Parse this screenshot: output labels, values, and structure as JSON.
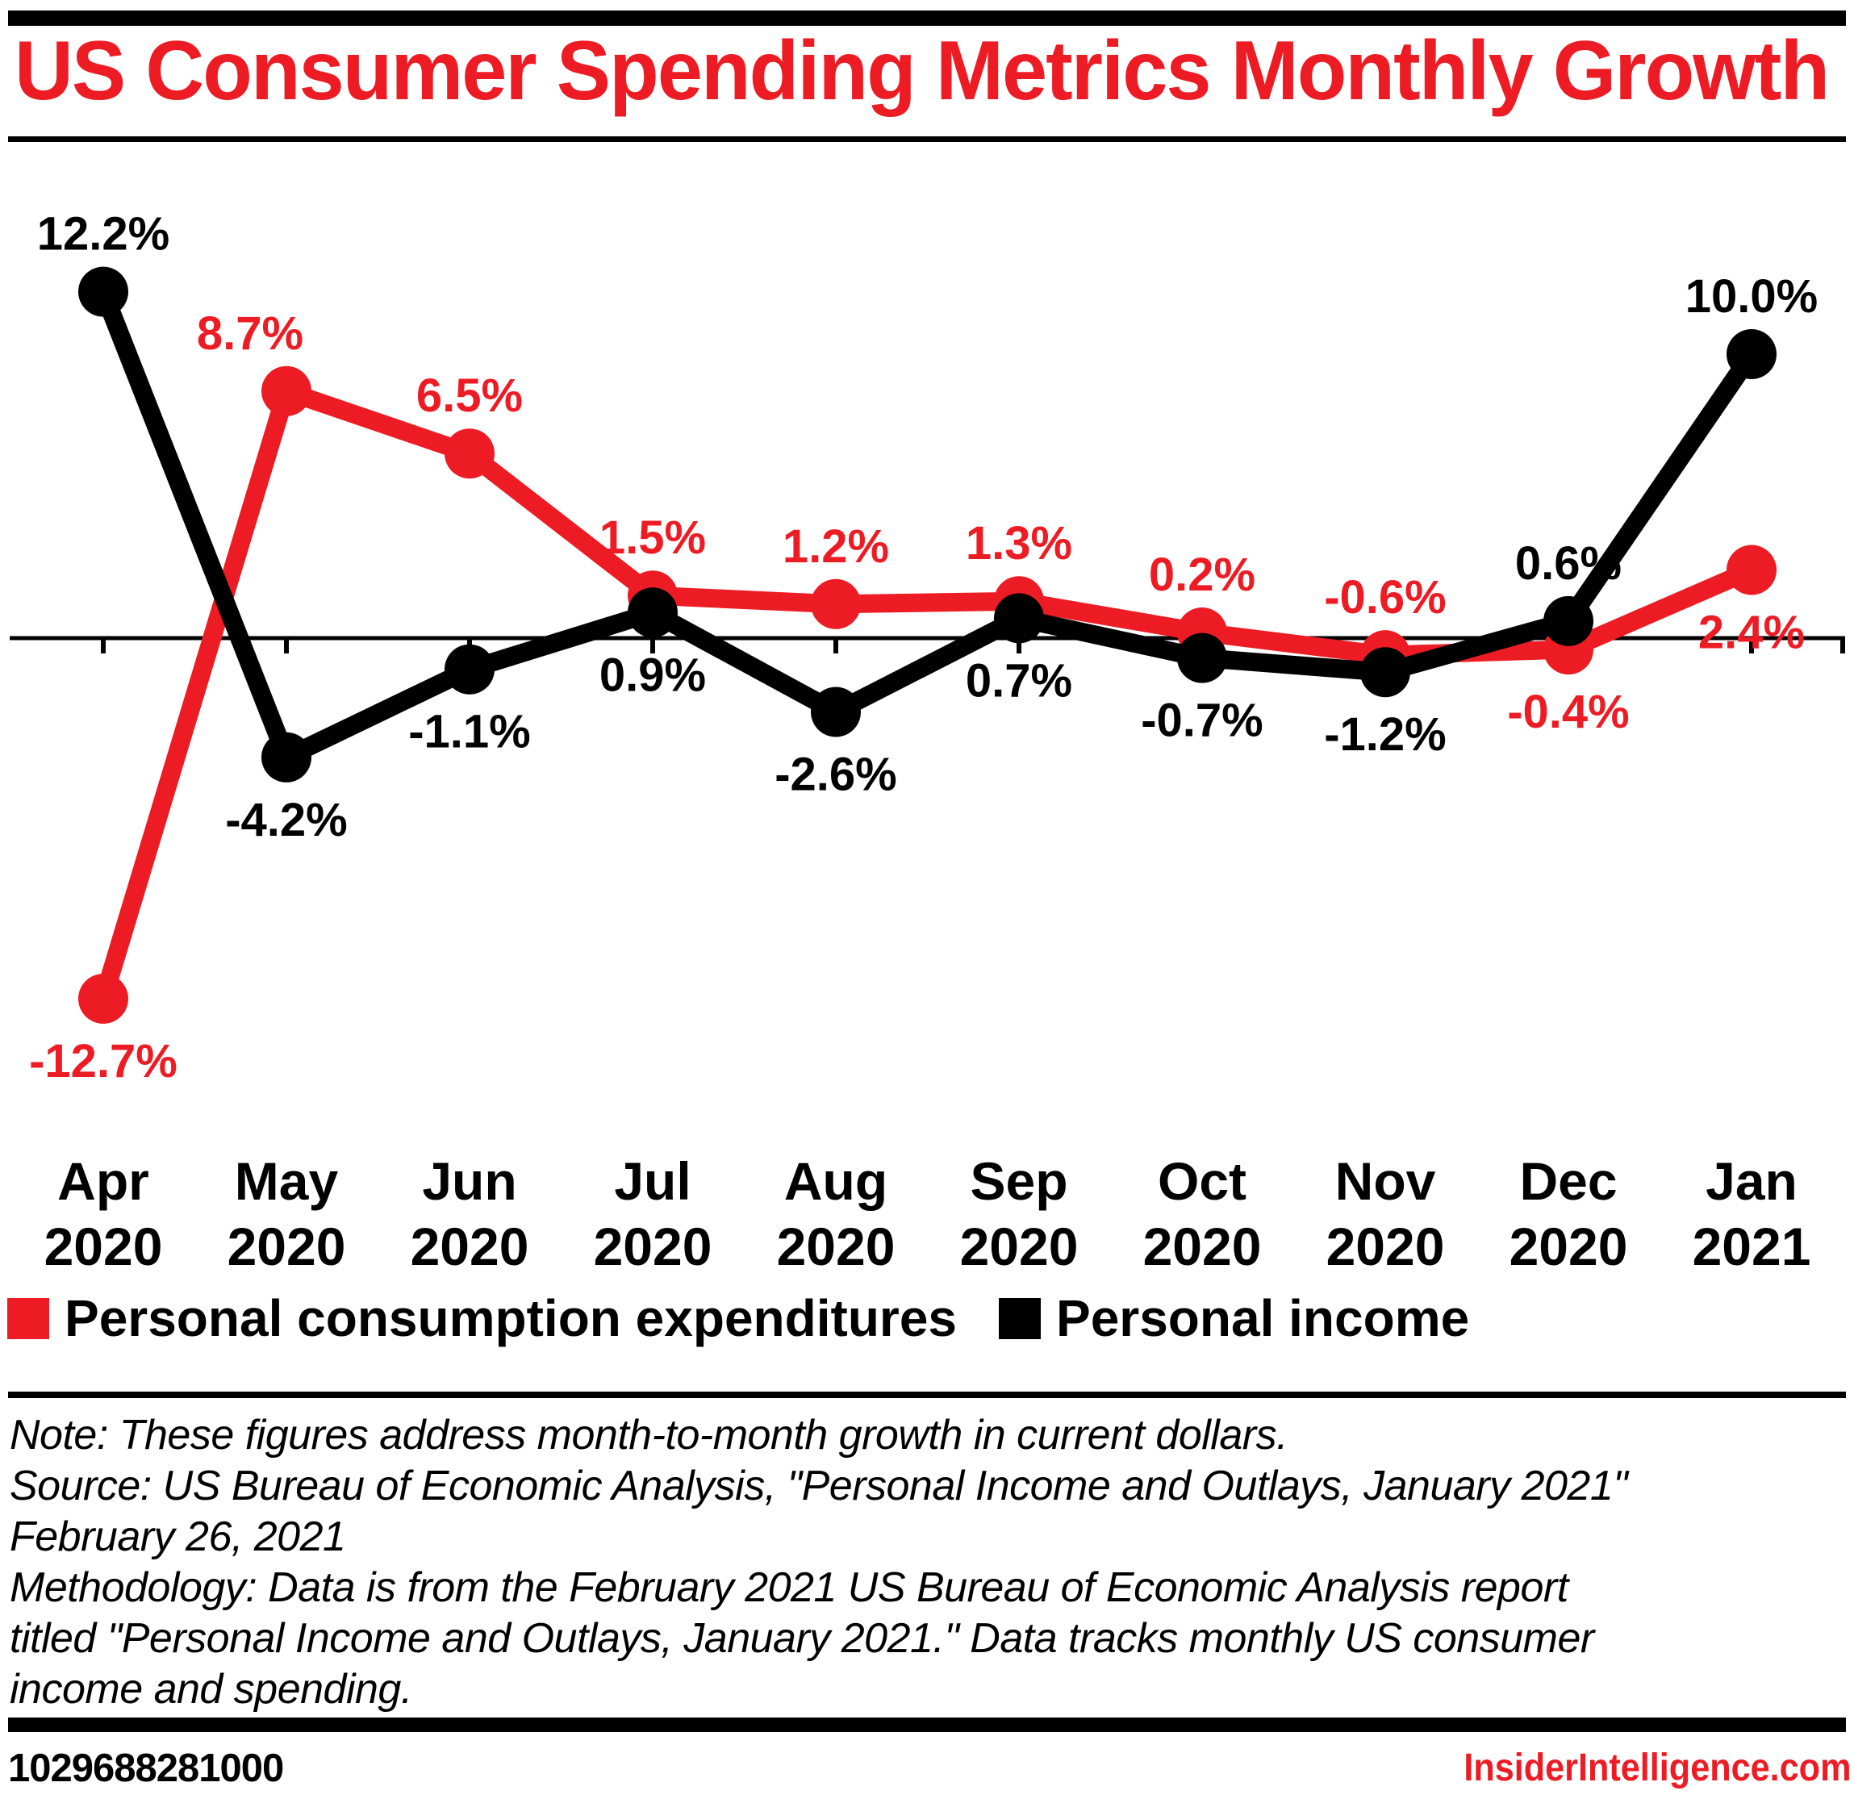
{
  "colors": {
    "accent": "#ED1C24",
    "ink": "#000000"
  },
  "header": {
    "title": "US Consumer Spending Metrics Monthly Growth"
  },
  "chart_data": {
    "type": "line",
    "title": "US Consumer Spending Metrics Monthly Growth",
    "x_categories": [
      {
        "month": "Apr",
        "year": "2020"
      },
      {
        "month": "May",
        "year": "2020"
      },
      {
        "month": "Jun",
        "year": "2020"
      },
      {
        "month": "Jul",
        "year": "2020"
      },
      {
        "month": "Aug",
        "year": "2020"
      },
      {
        "month": "Sep",
        "year": "2020"
      },
      {
        "month": "Oct",
        "year": "2020"
      },
      {
        "month": "Nov",
        "year": "2020"
      },
      {
        "month": "Dec",
        "year": "2020"
      },
      {
        "month": "Jan",
        "year": "2021"
      }
    ],
    "y_unit": "%",
    "baseline_value": 0,
    "grid": "zero-axis-only",
    "legend_position": "bottom",
    "series": [
      {
        "name": "Personal consumption expenditures",
        "color": "#ED1C24",
        "values": [
          -12.7,
          8.7,
          6.5,
          1.5,
          1.2,
          1.3,
          0.2,
          -0.6,
          -0.4,
          2.4
        ],
        "labels": [
          "-12.7%",
          "8.7%",
          "6.5%",
          "1.5%",
          "1.2%",
          "1.3%",
          "0.2%",
          "-0.6%",
          "-0.4%",
          "2.4%"
        ],
        "label_side": [
          "below",
          "above",
          "above",
          "above",
          "above",
          "above",
          "above",
          "above",
          "below",
          "below"
        ],
        "label_dx": [
          0,
          -45,
          0,
          0,
          0,
          0,
          0,
          0,
          0,
          0
        ]
      },
      {
        "name": "Personal income",
        "color": "#000000",
        "values": [
          12.2,
          -4.2,
          -1.1,
          0.9,
          -2.6,
          0.7,
          -0.7,
          -1.2,
          0.6,
          10.0
        ],
        "labels": [
          "12.2%",
          "-4.2%",
          "-1.1%",
          "0.9%",
          "-2.6%",
          "0.7%",
          "-0.7%",
          "-1.2%",
          "0.6%",
          "10.0%"
        ],
        "label_side": [
          "above",
          "below",
          "below",
          "below",
          "below",
          "below",
          "below",
          "below",
          "above",
          "above"
        ],
        "label_dx": [
          0,
          0,
          0,
          0,
          0,
          0,
          0,
          0,
          0,
          0
        ]
      }
    ]
  },
  "notes": {
    "lines": [
      "Note: These figures address month-to-month growth in current dollars.",
      "Source: US Bureau of Economic Analysis, \"Personal Income and Outlays, January 2021\"",
      "February 26, 2021",
      "Methodology: Data is from the February 2021 US Bureau of Economic Analysis report",
      "titled \"Personal Income and Outlays, January 2021.\" Data tracks monthly US consumer",
      "income and spending."
    ]
  },
  "footer": {
    "left_text": "1029688281000",
    "right_text": "InsiderIntelligence.com"
  }
}
